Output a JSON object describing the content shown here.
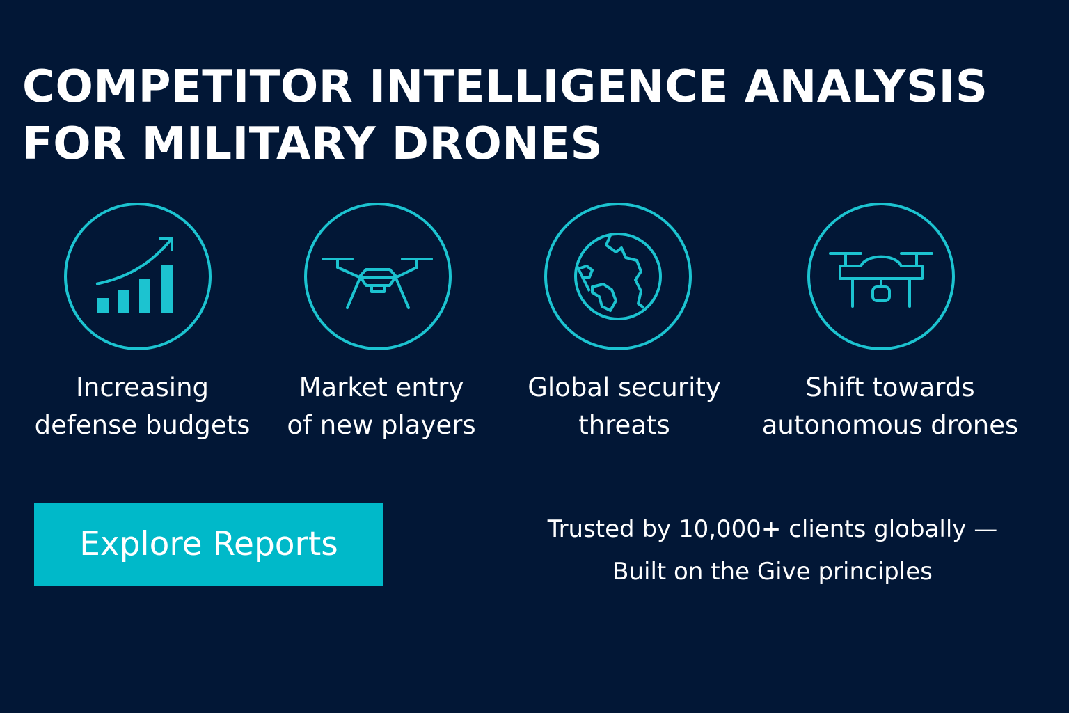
{
  "title": {
    "line1": "COMPETITOR INTELLIGENCE ANALYSIS",
    "line2": "FOR MILITARY DRONES"
  },
  "accent_color": "#1cc3d0",
  "background_color": "#021736",
  "features": [
    {
      "icon": "growth-chart-icon",
      "line1": "Increasing",
      "line2": "defense budgets"
    },
    {
      "icon": "drone-icon",
      "line1": "Market entry",
      "line2": "of new players"
    },
    {
      "icon": "globe-icon",
      "line1": "Global security",
      "line2": "threats"
    },
    {
      "icon": "autonomous-drone-icon",
      "line1": "Shift towards",
      "line2": "autonomous drones"
    }
  ],
  "cta": {
    "label": "Explore Reports"
  },
  "trust": {
    "line1": "Trusted by 10,000+ clients globally —",
    "line2": "Built on the Give principles"
  }
}
